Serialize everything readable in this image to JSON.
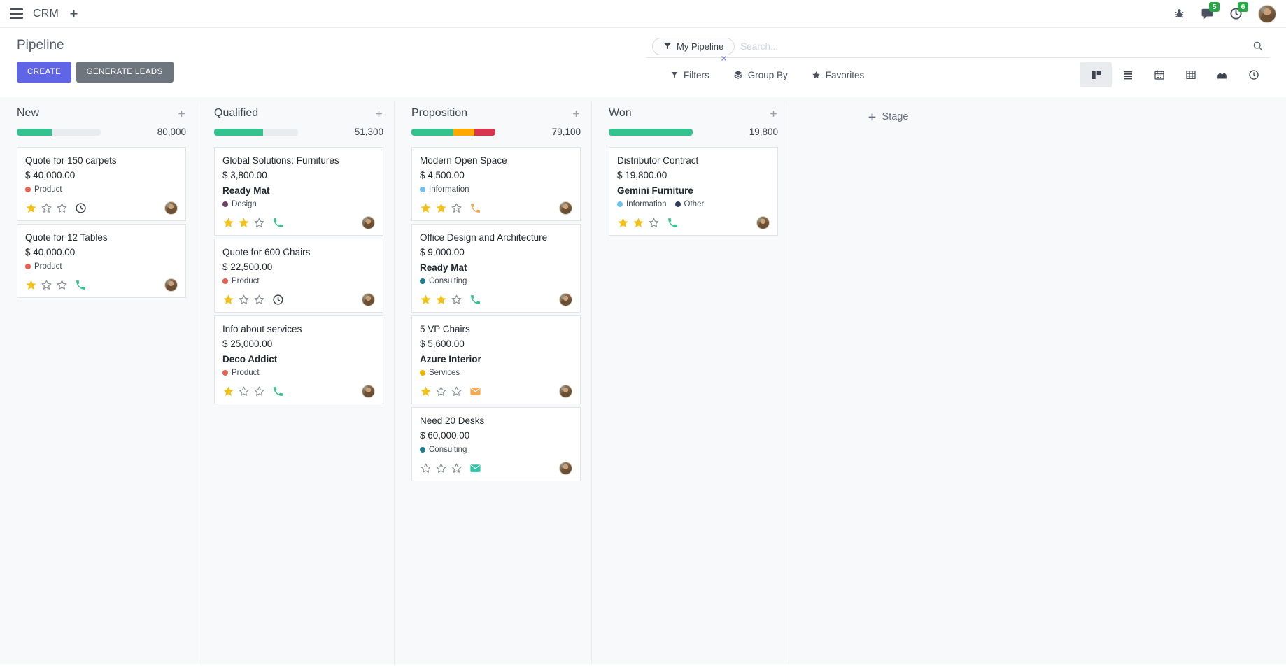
{
  "navbar": {
    "app_name": "CRM",
    "messages_badge": "5",
    "activities_badge": "6"
  },
  "panel": {
    "title": "Pipeline",
    "create_label": "CREATE",
    "generate_leads_label": "GENERATE LEADS",
    "search": {
      "facet_label": "My Pipeline",
      "placeholder": "Search..."
    },
    "filters_label": "Filters",
    "group_by_label": "Group By",
    "favorites_label": "Favorites",
    "active_view": "kanban",
    "views": [
      "kanban",
      "list",
      "calendar",
      "pivot",
      "graph",
      "activity"
    ]
  },
  "colors": {
    "accent": "#6065e5",
    "badge_green": "#28a745",
    "star_filled": "#f1c219",
    "star_empty": "#8b9096",
    "progress_green": "#34c38f",
    "progress_orange": "#fea800",
    "progress_red": "#d8354f"
  },
  "board": {
    "add_stage_label": "Stage",
    "columns": [
      {
        "name": "New",
        "total": "80,000",
        "progress": [
          {
            "hex": "#34c38f",
            "pct": 42
          }
        ],
        "cards": [
          {
            "title": "Quote for 150 carpets",
            "amount": "$ 40,000.00",
            "tags": [
              {
                "label": "Product",
                "color": "#e8604f"
              }
            ],
            "stars": 1,
            "activity": {
              "icon": "clock-icon",
              "color": "#3e454d"
            }
          },
          {
            "title": "Quote for 12 Tables",
            "amount": "$ 40,000.00",
            "tags": [
              {
                "label": "Product",
                "color": "#e8604f"
              }
            ],
            "stars": 1,
            "activity": {
              "icon": "phone-icon",
              "color": "#34c38f"
            }
          }
        ]
      },
      {
        "name": "Qualified",
        "total": "51,300",
        "progress": [
          {
            "hex": "#34c38f",
            "pct": 58
          }
        ],
        "cards": [
          {
            "title": "Global Solutions: Furnitures",
            "amount": "$ 3,800.00",
            "company": "Ready Mat",
            "tags": [
              {
                "label": "Design",
                "color": "#6b4063"
              }
            ],
            "stars": 2,
            "activity": {
              "icon": "phone-icon",
              "color": "#34c38f"
            }
          },
          {
            "title": "Quote for 600 Chairs",
            "amount": "$ 22,500.00",
            "tags": [
              {
                "label": "Product",
                "color": "#e8604f"
              }
            ],
            "stars": 1,
            "activity": {
              "icon": "clock-icon",
              "color": "#3e454d"
            }
          },
          {
            "title": "Info about services",
            "amount": "$ 25,000.00",
            "company": "Deco Addict",
            "tags": [
              {
                "label": "Product",
                "color": "#e8604f"
              }
            ],
            "stars": 1,
            "activity": {
              "icon": "phone-icon",
              "color": "#34c38f"
            }
          }
        ]
      },
      {
        "name": "Proposition",
        "total": "79,100",
        "progress": [
          {
            "hex": "#34c38f",
            "pct": 50
          },
          {
            "hex": "#fea800",
            "pct": 25
          },
          {
            "hex": "#d8354f",
            "pct": 25
          }
        ],
        "cards": [
          {
            "title": "Modern Open Space",
            "amount": "$ 4,500.00",
            "tags": [
              {
                "label": "Information",
                "color": "#6cc1ed"
              }
            ],
            "stars": 2,
            "activity": {
              "icon": "phone-icon",
              "color": "#f0a858"
            }
          },
          {
            "title": "Office Design and Architecture",
            "amount": "$ 9,000.00",
            "company": "Ready Mat",
            "tags": [
              {
                "label": "Consulting",
                "color": "#1d7e8f"
              }
            ],
            "stars": 2,
            "activity": {
              "icon": "phone-icon",
              "color": "#34c38f"
            }
          },
          {
            "title": "5 VP Chairs",
            "amount": "$ 5,600.00",
            "company": "Azure Interior",
            "tags": [
              {
                "label": "Services",
                "color": "#efb300"
              }
            ],
            "stars": 1,
            "activity": {
              "icon": "envelope-icon",
              "color": "#f2a951"
            }
          },
          {
            "title": "Need 20 Desks",
            "amount": "$ 60,000.00",
            "tags": [
              {
                "label": "Consulting",
                "color": "#1d7e8f"
              }
            ],
            "stars": 0,
            "activity": {
              "icon": "envelope-icon",
              "color": "#2ec4a5"
            }
          }
        ]
      },
      {
        "name": "Won",
        "total": "19,800",
        "progress": [
          {
            "hex": "#34c38f",
            "pct": 100
          }
        ],
        "cards": [
          {
            "title": "Distributor Contract",
            "amount": "$ 19,800.00",
            "company": "Gemini Furniture",
            "tags": [
              {
                "label": "Information",
                "color": "#6cc1ed"
              },
              {
                "label": "Other",
                "color": "#2b3f5c"
              }
            ],
            "stars": 2,
            "activity": {
              "icon": "phone-icon",
              "color": "#34c38f"
            }
          }
        ]
      }
    ]
  }
}
